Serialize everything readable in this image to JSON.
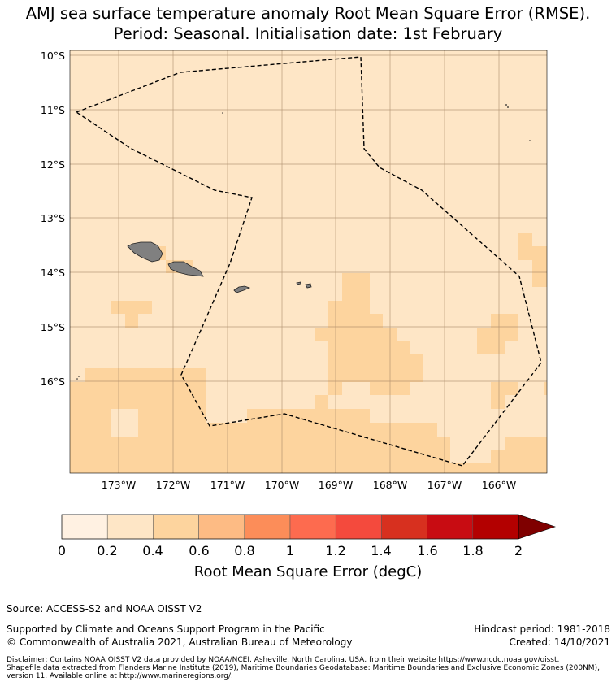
{
  "title": {
    "line1": "AMJ sea surface temperature anomaly Root Mean Square Error (RMSE).",
    "line2": "Period: Seasonal. Initialisation date: 1st February"
  },
  "map": {
    "lat_labels": [
      "10°S",
      "11°S",
      "12°S",
      "13°S",
      "14°S",
      "15°S",
      "16°S"
    ],
    "lon_labels": [
      "173°W",
      "172°W",
      "171°W",
      "170°W",
      "169°W",
      "168°W",
      "167°W",
      "166°W"
    ],
    "lon_range": [
      -173.9,
      -165.0
    ],
    "lat_range": [
      -17.8,
      -9.9
    ],
    "background_color": "#fee6c6",
    "land_color": "#808080",
    "grid_color": "#a08060"
  },
  "colorbar": {
    "ticks": [
      "0",
      "0.2",
      "0.4",
      "0.6",
      "0.8",
      "1",
      "1.2",
      "1.4",
      "1.6",
      "1.8",
      "2"
    ],
    "colors": [
      "#fff1e2",
      "#fee6c6",
      "#fdd49e",
      "#fdbb84",
      "#fc8d59",
      "#fd6b4f",
      "#f44a3d",
      "#d7301f",
      "#c80c12",
      "#b30000"
    ],
    "extend_color": "#7f0000",
    "label": "Root Mean Square Error (degC)"
  },
  "footer": {
    "source": "Source: ACCESS-S2 and NOAA OISST V2",
    "supported": "Supported by Climate and Oceans Support Program in the Pacific",
    "copyright": "© Commonwealth of Australia 2021, Australian Bureau of Meteorology",
    "hindcast": "Hindcast period: 1981-2018",
    "created": "Created: 14/10/2021",
    "disclaimer1": "Disclaimer: Contains NOAA OISST V2 data provided by NOAA/NCEI, Asheville, North Carolina, USA, from their website https://www.ncdc.noaa.gov/oisst.",
    "disclaimer2": "Shapefile data extracted from Flanders Marine Institute (2019), Maritime Boundaries Geodatabase: Maritime Boundaries and Exclusive Economic Zones (200NM),",
    "disclaimer3": "version 11. Available online at http://www.marineregions.org/."
  }
}
